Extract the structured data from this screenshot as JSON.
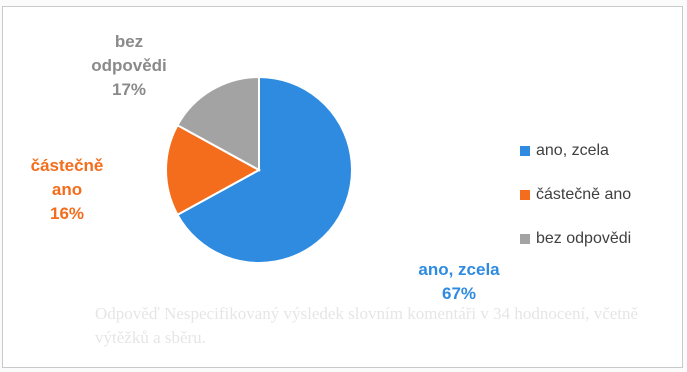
{
  "background_text": "Odpověď Nespecifikovaný výsledek slovním komentáři v 34 hodnocení, včetně výtěžků a sběru.",
  "chart_data": {
    "type": "pie",
    "title": "",
    "slices": [
      {
        "name": "ano, zcela",
        "value": 67,
        "label": "67%",
        "color": "#2e8be0"
      },
      {
        "name": "částečně ano",
        "value": 16,
        "label": "16%",
        "color": "#f36d1c"
      },
      {
        "name": "bez odpovědi",
        "value": 17,
        "label": "17%",
        "color": "#a3a3a3"
      }
    ],
    "start": "12 o'clock",
    "direction": "clockwise",
    "legend": {
      "placement": "right",
      "entries": [
        "ano, zcela",
        "částečně ano",
        "bez odpovědi"
      ]
    },
    "label_colors": {
      "ano, zcela": "#2e8be0",
      "částečně ano": "#f36d1c",
      "bez odpovědi": "#8a8a8a"
    }
  }
}
